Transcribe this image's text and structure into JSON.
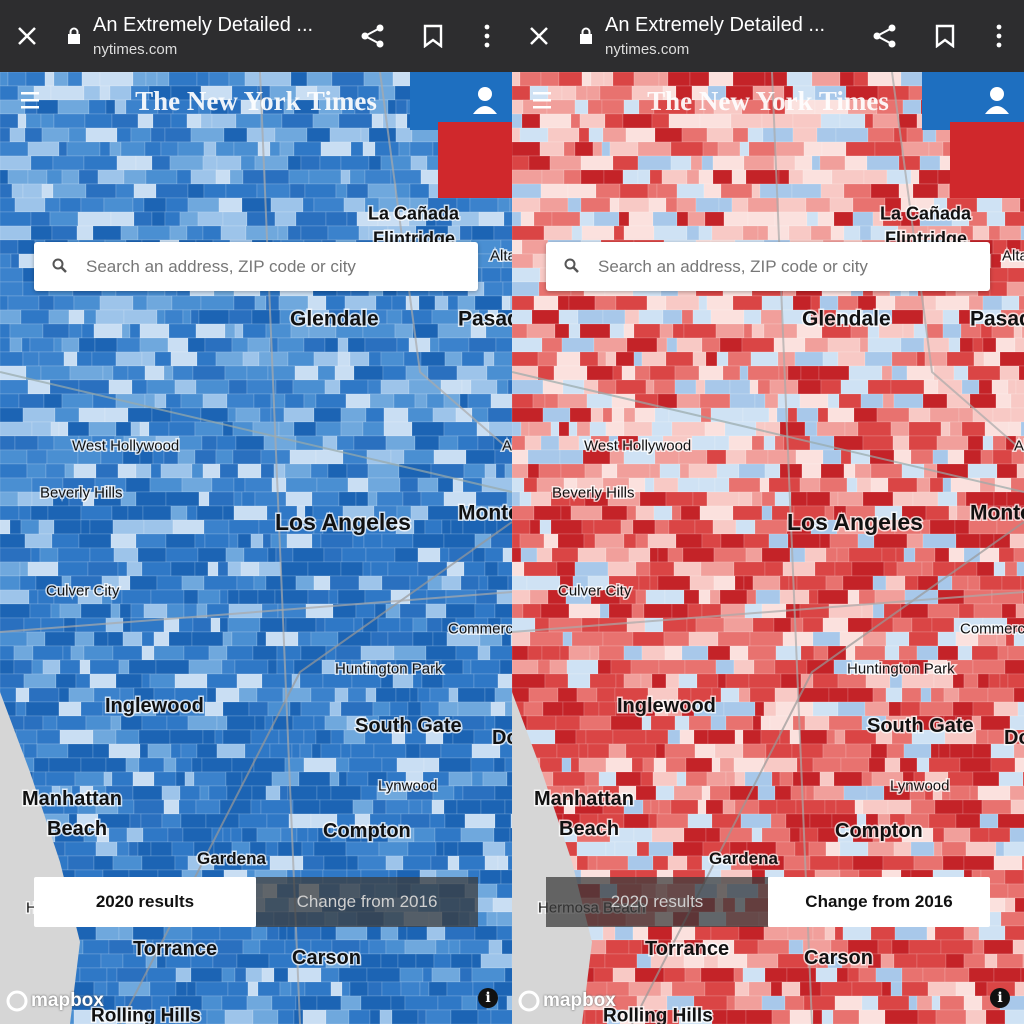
{
  "panels": [
    {
      "browser": {
        "title": "An Extremely Detailed ...",
        "url": "nytimes.com"
      },
      "logo": "The New York Times",
      "search_placeholder": "Search an address, ZIP code or city",
      "map_labels": [
        "La Cañada",
        "Flintridge",
        "Altadena",
        "Glendale",
        "Pasadena",
        "West Hollywood",
        "Alhambra",
        "Beverly Hills",
        "Los Angeles",
        "Monterey Park",
        "Culver City",
        "Commerce",
        "Huntington Park",
        "Inglewood",
        "South Gate",
        "Downey",
        "Lynwood",
        "Manhattan",
        "Beach",
        "Compton",
        "Gardena",
        "Hermosa Beach",
        "Torrance",
        "Carson",
        "Rolling Hills"
      ],
      "toggle": {
        "options": [
          "2020 results",
          "Change from 2016"
        ],
        "active": 0
      },
      "attribution": "mapbox"
    },
    {
      "browser": {
        "title": "An Extremely Detailed ...",
        "url": "nytimes.com"
      },
      "logo": "The New York Times",
      "search_placeholder": "Search an address, ZIP code or city",
      "map_labels": [
        "La Cañada",
        "Flintridge",
        "Altadena",
        "Glendale",
        "Pasadena",
        "West Hollywood",
        "Alhambra",
        "Beverly Hills",
        "Los Angeles",
        "Monterey Park",
        "Culver City",
        "Commerce",
        "Huntington Park",
        "Inglewood",
        "South Gate",
        "Downey",
        "Lynwood",
        "Manhattan",
        "Beach",
        "Compton",
        "Gardena",
        "Hermosa Beach",
        "Torrance",
        "Carson",
        "Rolling Hills"
      ],
      "toggle": {
        "options": [
          "2020 results",
          "Change from 2016"
        ],
        "active": 1
      },
      "attribution": "mapbox"
    }
  ]
}
